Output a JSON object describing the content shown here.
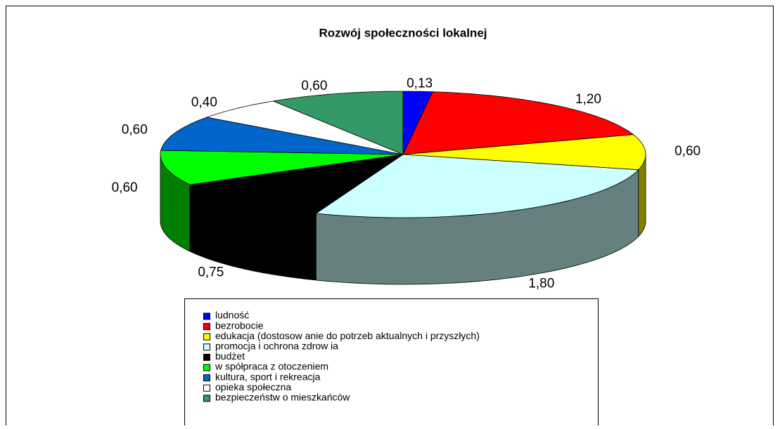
{
  "chart_data": {
    "type": "pie3d",
    "title": "Rozwój społeczności lokalnej",
    "categories": [
      "ludność",
      "bezrobocie",
      "edukacja (dostosow anie do potrzeb aktualnych i przyszłych)",
      "promocja i ochrona zdrow ia",
      "budżet",
      "w spółpraca z otoczeniem",
      "kultura, sport i rekreacja",
      "opieka społeczna",
      "bezpieczeństw o mieszkańców"
    ],
    "values": [
      0.13,
      1.2,
      0.6,
      1.8,
      0.75,
      0.6,
      0.6,
      0.4,
      0.6
    ],
    "value_labels": [
      "0,13",
      "1,20",
      "0,60",
      "1,80",
      "0,75",
      "0,60",
      "0,60",
      "0,40",
      "0,60"
    ],
    "colors": [
      "#0000ff",
      "#ff0000",
      "#ffff00",
      "#ccffff",
      "#000000",
      "#00ff00",
      "#0066cc",
      "#ffffff",
      "#339966"
    ]
  }
}
